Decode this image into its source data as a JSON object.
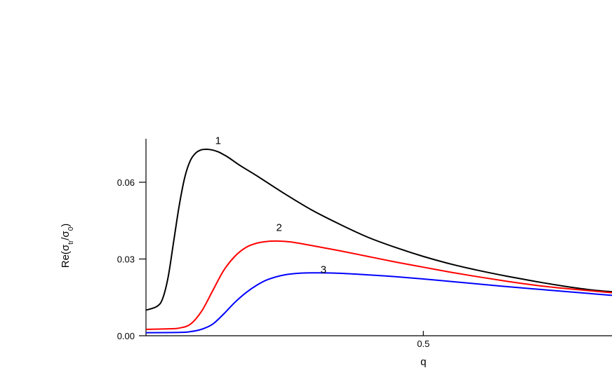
{
  "chart_data": {
    "type": "line",
    "title": "",
    "xlabel": "q",
    "ylabel": {
      "main": "Re(σ",
      "sub1": "tr",
      "mid": "/σ",
      "sub2": "0",
      "close": ")"
    },
    "xlim": [
      0.0,
      0.84
    ],
    "ylim": [
      0.0,
      0.077
    ],
    "x_ticks": [
      {
        "value": 0.5,
        "label": "0.5"
      }
    ],
    "y_ticks": [
      {
        "value": 0.0,
        "label": "0.00"
      },
      {
        "value": 0.03,
        "label": "0.03"
      },
      {
        "value": 0.06,
        "label": "0.06"
      }
    ],
    "grid": false,
    "legend": "none",
    "series": [
      {
        "label": "1",
        "color": "#000000",
        "label_at": [
          0.13,
          0.075
        ],
        "x": [
          0.0,
          0.02,
          0.03,
          0.04,
          0.05,
          0.06,
          0.07,
          0.08,
          0.09,
          0.1,
          0.11,
          0.12,
          0.13,
          0.14,
          0.15,
          0.17,
          0.2,
          0.25,
          0.3,
          0.35,
          0.4,
          0.45,
          0.5,
          0.55,
          0.6,
          0.65,
          0.7,
          0.75,
          0.8,
          0.84
        ],
        "y": [
          0.01,
          0.0115,
          0.0145,
          0.023,
          0.037,
          0.051,
          0.062,
          0.0685,
          0.0715,
          0.0727,
          0.0729,
          0.0726,
          0.0719,
          0.0708,
          0.0695,
          0.0665,
          0.0625,
          0.0555,
          0.049,
          0.0435,
          0.0385,
          0.0345,
          0.031,
          0.028,
          0.0255,
          0.0233,
          0.0213,
          0.0195,
          0.018,
          0.0172
        ]
      },
      {
        "label": "2",
        "color": "#ff0000",
        "label_at": [
          0.24,
          0.041
        ],
        "x": [
          0.0,
          0.04,
          0.06,
          0.08,
          0.1,
          0.12,
          0.14,
          0.16,
          0.18,
          0.2,
          0.22,
          0.24,
          0.26,
          0.28,
          0.3,
          0.35,
          0.4,
          0.45,
          0.5,
          0.55,
          0.6,
          0.65,
          0.7,
          0.75,
          0.8,
          0.84
        ],
        "y": [
          0.0025,
          0.0027,
          0.003,
          0.0045,
          0.0095,
          0.0175,
          0.0255,
          0.031,
          0.0345,
          0.0362,
          0.0369,
          0.037,
          0.0367,
          0.036,
          0.0352,
          0.0332,
          0.031,
          0.0288,
          0.0268,
          0.0248,
          0.023,
          0.0213,
          0.0198,
          0.0186,
          0.0176,
          0.0168
        ]
      },
      {
        "label": "3",
        "color": "#0000ff",
        "label_at": [
          0.32,
          0.0245
        ],
        "x": [
          0.0,
          0.06,
          0.08,
          0.1,
          0.12,
          0.14,
          0.16,
          0.18,
          0.2,
          0.22,
          0.25,
          0.28,
          0.31,
          0.34,
          0.37,
          0.4,
          0.45,
          0.5,
          0.55,
          0.6,
          0.65,
          0.7,
          0.75,
          0.8,
          0.84
        ],
        "y": [
          0.0012,
          0.0013,
          0.0016,
          0.0025,
          0.0045,
          0.0085,
          0.013,
          0.0168,
          0.0198,
          0.022,
          0.0238,
          0.0245,
          0.0246,
          0.0245,
          0.0242,
          0.0238,
          0.0231,
          0.0222,
          0.0212,
          0.0202,
          0.0192,
          0.0183,
          0.0174,
          0.0165,
          0.0158
        ]
      }
    ]
  }
}
